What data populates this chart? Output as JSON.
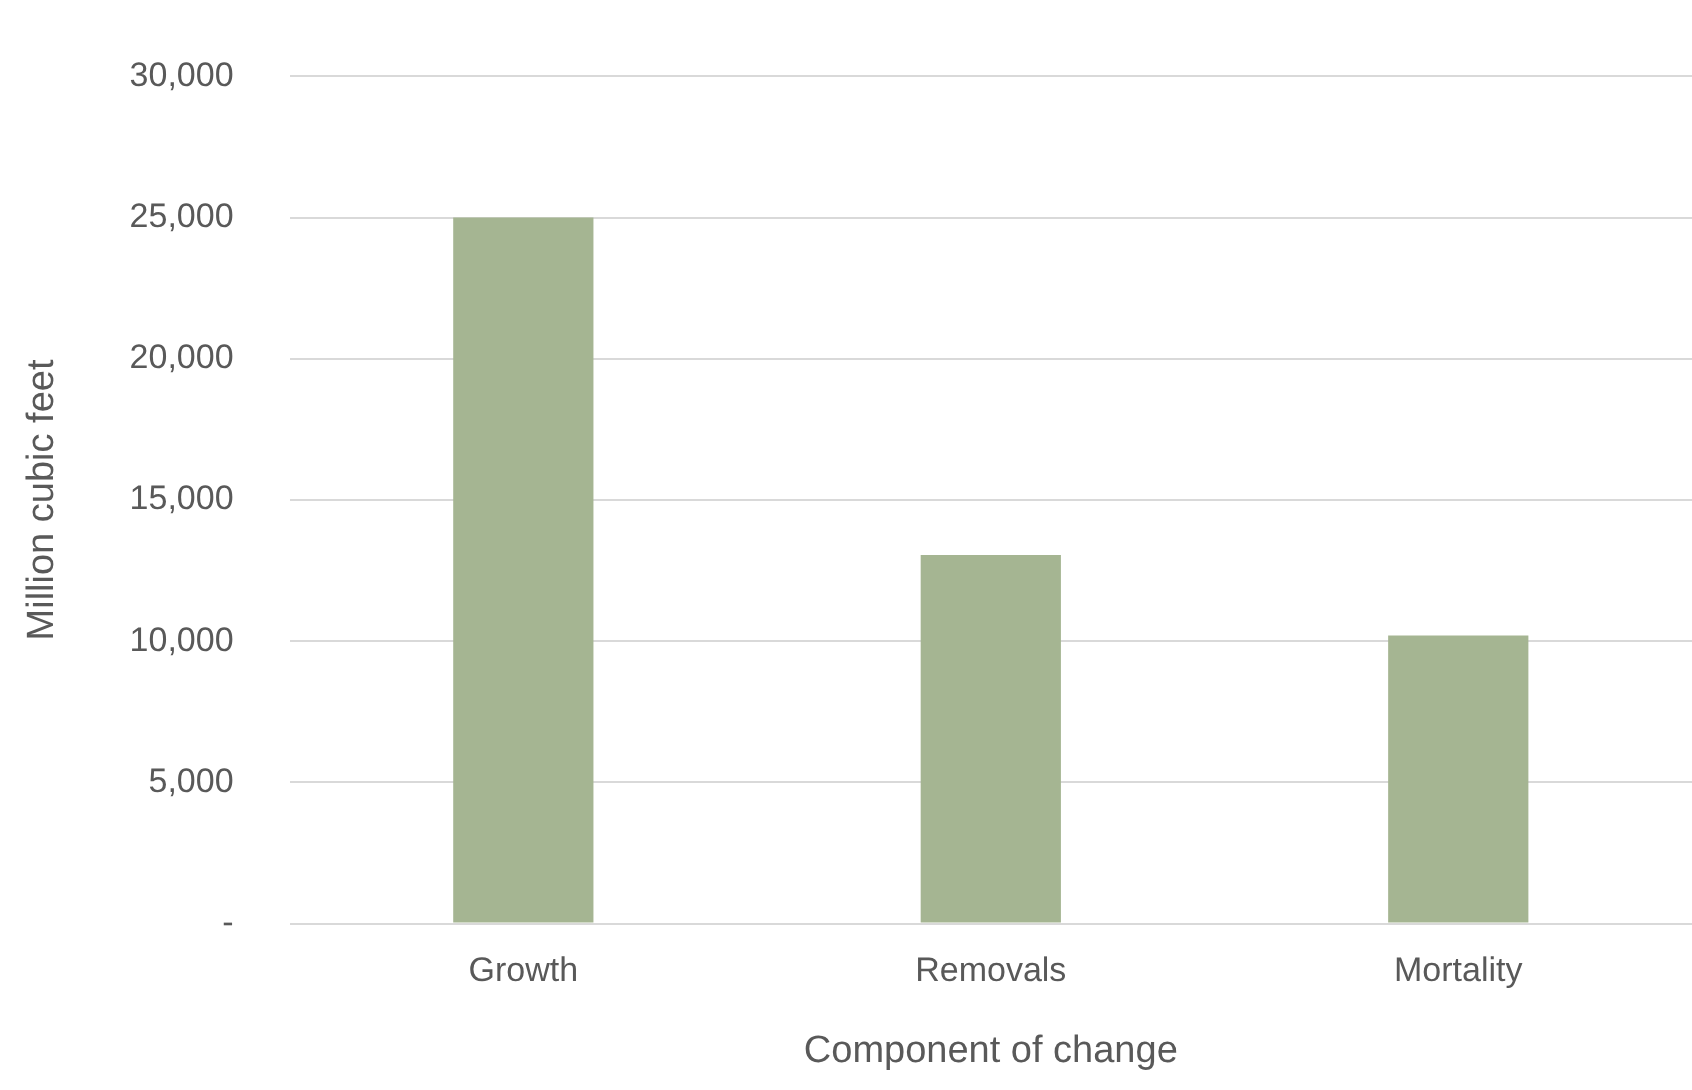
{
  "chart_data": {
    "type": "bar",
    "xlabel": "Component of change",
    "ylabel": "Million cubic feet",
    "categories": [
      "Growth",
      "Removals",
      "Mortality"
    ],
    "values": [
      25000,
      13050,
      10200
    ],
    "color": "#a5b592",
    "ylim": [
      0,
      30000
    ],
    "yticks": [
      {
        "value": 0,
        "label": "-"
      },
      {
        "value": 5000,
        "label": "5,000"
      },
      {
        "value": 10000,
        "label": "10,000"
      },
      {
        "value": 15000,
        "label": "15,000"
      },
      {
        "value": 20000,
        "label": "20,000"
      },
      {
        "value": 25000,
        "label": "25,000"
      },
      {
        "value": 30000,
        "label": "30,000"
      }
    ],
    "grid": "y",
    "legend": false
  }
}
